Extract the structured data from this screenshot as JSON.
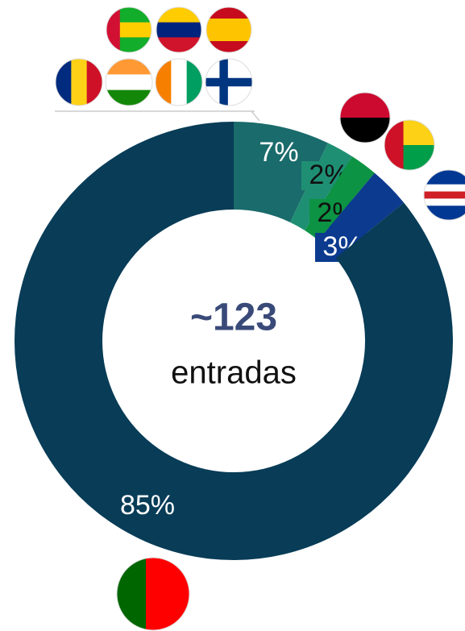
{
  "chart_data": {
    "type": "donut",
    "center_label": "~123",
    "center_sublabel": "entradas",
    "values": [
      7,
      2,
      2,
      3,
      85
    ],
    "value_labels": [
      "7%",
      "2%",
      "2%",
      "3%",
      "85%"
    ],
    "colors": [
      "#1a6b6b",
      "#1f8f74",
      "#0c9343",
      "#0b3a8e",
      "#083c57"
    ]
  }
}
